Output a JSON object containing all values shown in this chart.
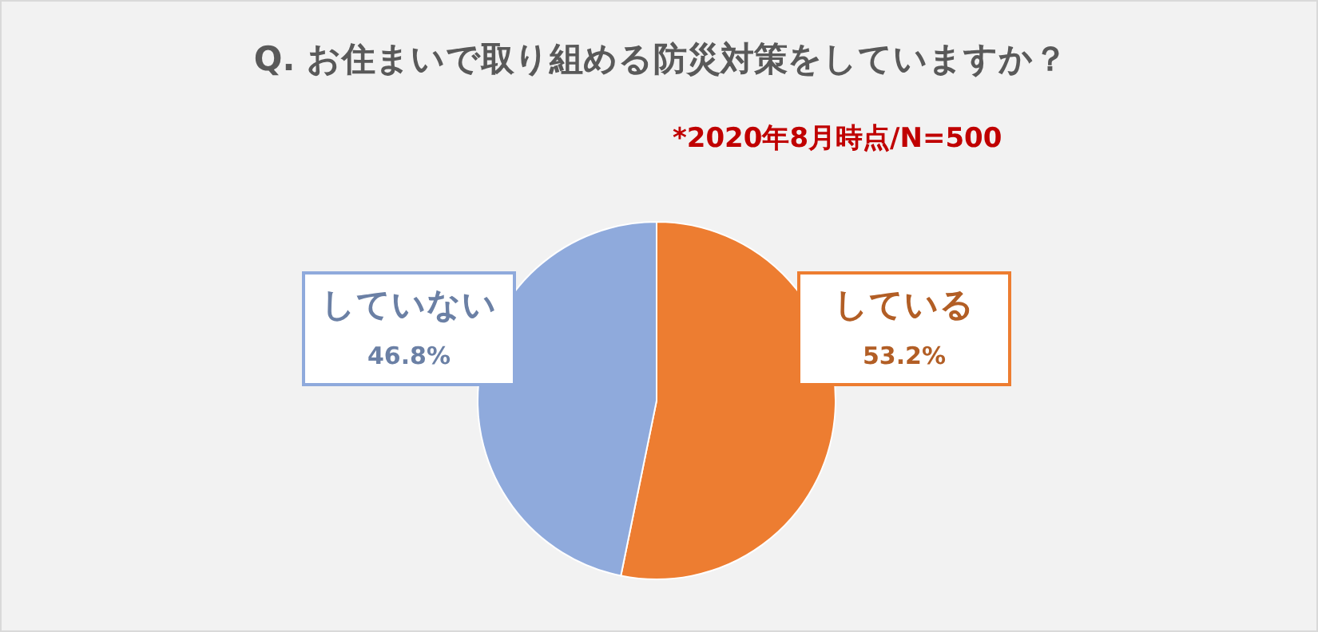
{
  "chart_data": {
    "type": "pie",
    "title": "Q. お住まいで取り組める防災対策をしていますか？",
    "annotations": [
      "*2020年8月時点/N=500"
    ],
    "categories": [
      "している",
      "していない"
    ],
    "values": [
      53.2,
      46.8
    ],
    "colors": [
      "#ed7d31",
      "#8faadc"
    ],
    "value_labels": [
      "53.2%",
      "46.8%"
    ]
  }
}
